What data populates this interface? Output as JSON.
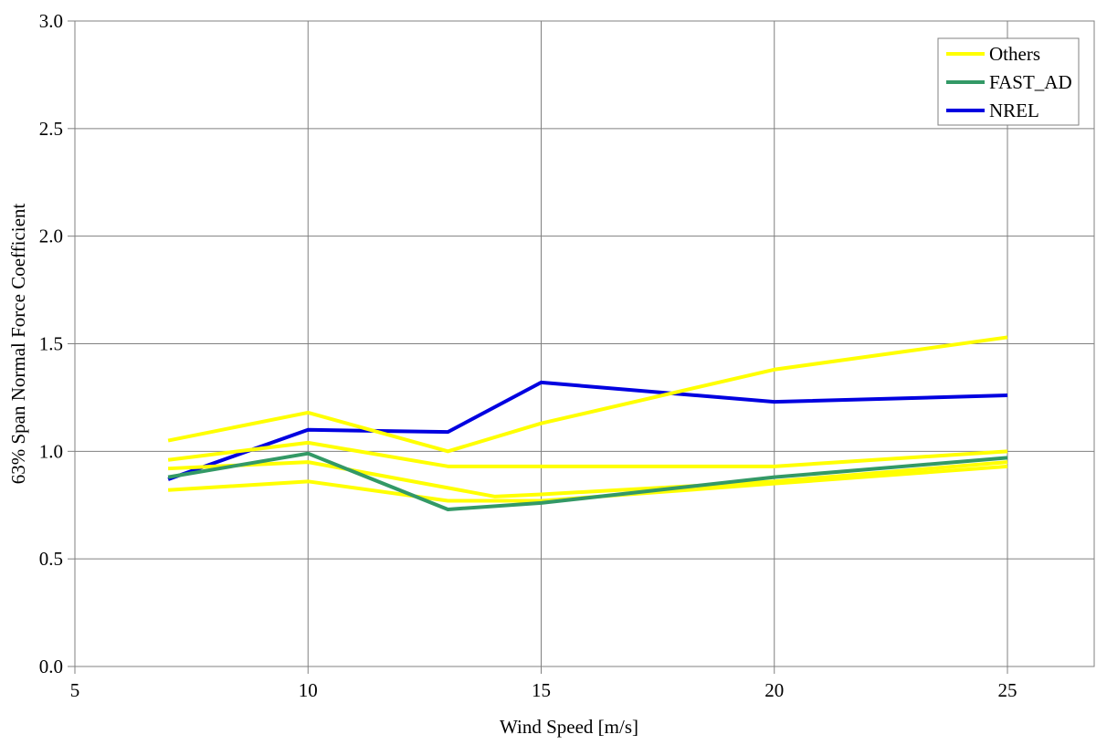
{
  "chart_data": {
    "type": "line",
    "title": "",
    "xlabel": "Wind Speed [m/s]",
    "ylabel": "63% Span Normal Force Coefficient",
    "xlim": [
      5,
      26.9
    ],
    "ylim": [
      0.0,
      3.0
    ],
    "grid": true,
    "xtick_values": [
      5,
      10,
      15,
      20,
      25
    ],
    "xtick_labels": [
      "5",
      "10",
      "15",
      "20",
      "25"
    ],
    "ytick_values": [
      0.0,
      0.5,
      1.0,
      1.5,
      2.0,
      2.5,
      3.0
    ],
    "ytick_labels": [
      "0.0",
      "0.5",
      "1.0",
      "1.5",
      "2.0",
      "2.5",
      "3.0"
    ],
    "colors": {
      "others": "#FFFF00",
      "fast_ad": "#339966",
      "nrel": "#0000E0",
      "grid": "#808080",
      "axis": "#808080",
      "background": "#FFFFFF"
    },
    "legend": {
      "position": "top-right",
      "entries": [
        {
          "label": "Others",
          "color": "#FFFF00"
        },
        {
          "label": "FAST_AD",
          "color": "#339966"
        },
        {
          "label": "NREL",
          "color": "#0000E0"
        }
      ]
    },
    "series": [
      {
        "name": "NREL",
        "legend": "NREL",
        "color": "#0000E0",
        "x": [
          7,
          10,
          13,
          15,
          20,
          25
        ],
        "y": [
          0.87,
          1.1,
          1.09,
          1.32,
          1.23,
          1.26
        ]
      },
      {
        "name": "Others-1",
        "legend": "Others",
        "color": "#FFFF00",
        "x": [
          7,
          10,
          13,
          15,
          20,
          25
        ],
        "y": [
          1.05,
          1.18,
          1.0,
          1.13,
          1.38,
          1.53
        ]
      },
      {
        "name": "Others-2",
        "legend": "Others",
        "color": "#FFFF00",
        "x": [
          7,
          10,
          13,
          15,
          20,
          25
        ],
        "y": [
          0.96,
          1.04,
          0.93,
          0.93,
          0.93,
          1.0
        ]
      },
      {
        "name": "Others-3",
        "legend": "Others",
        "color": "#FFFF00",
        "x": [
          7,
          10,
          13,
          14,
          15,
          20,
          25
        ],
        "y": [
          0.92,
          0.95,
          0.83,
          0.79,
          0.8,
          0.86,
          0.95
        ]
      },
      {
        "name": "Others-4",
        "legend": "Others",
        "color": "#FFFF00",
        "x": [
          7,
          10,
          13,
          15,
          20,
          25
        ],
        "y": [
          0.82,
          0.86,
          0.77,
          0.77,
          0.85,
          0.93
        ]
      },
      {
        "name": "FAST_AD",
        "legend": "FAST_AD",
        "color": "#339966",
        "x": [
          7,
          10,
          13,
          15,
          20,
          25
        ],
        "y": [
          0.88,
          0.99,
          0.73,
          0.76,
          0.88,
          0.97
        ]
      }
    ]
  }
}
